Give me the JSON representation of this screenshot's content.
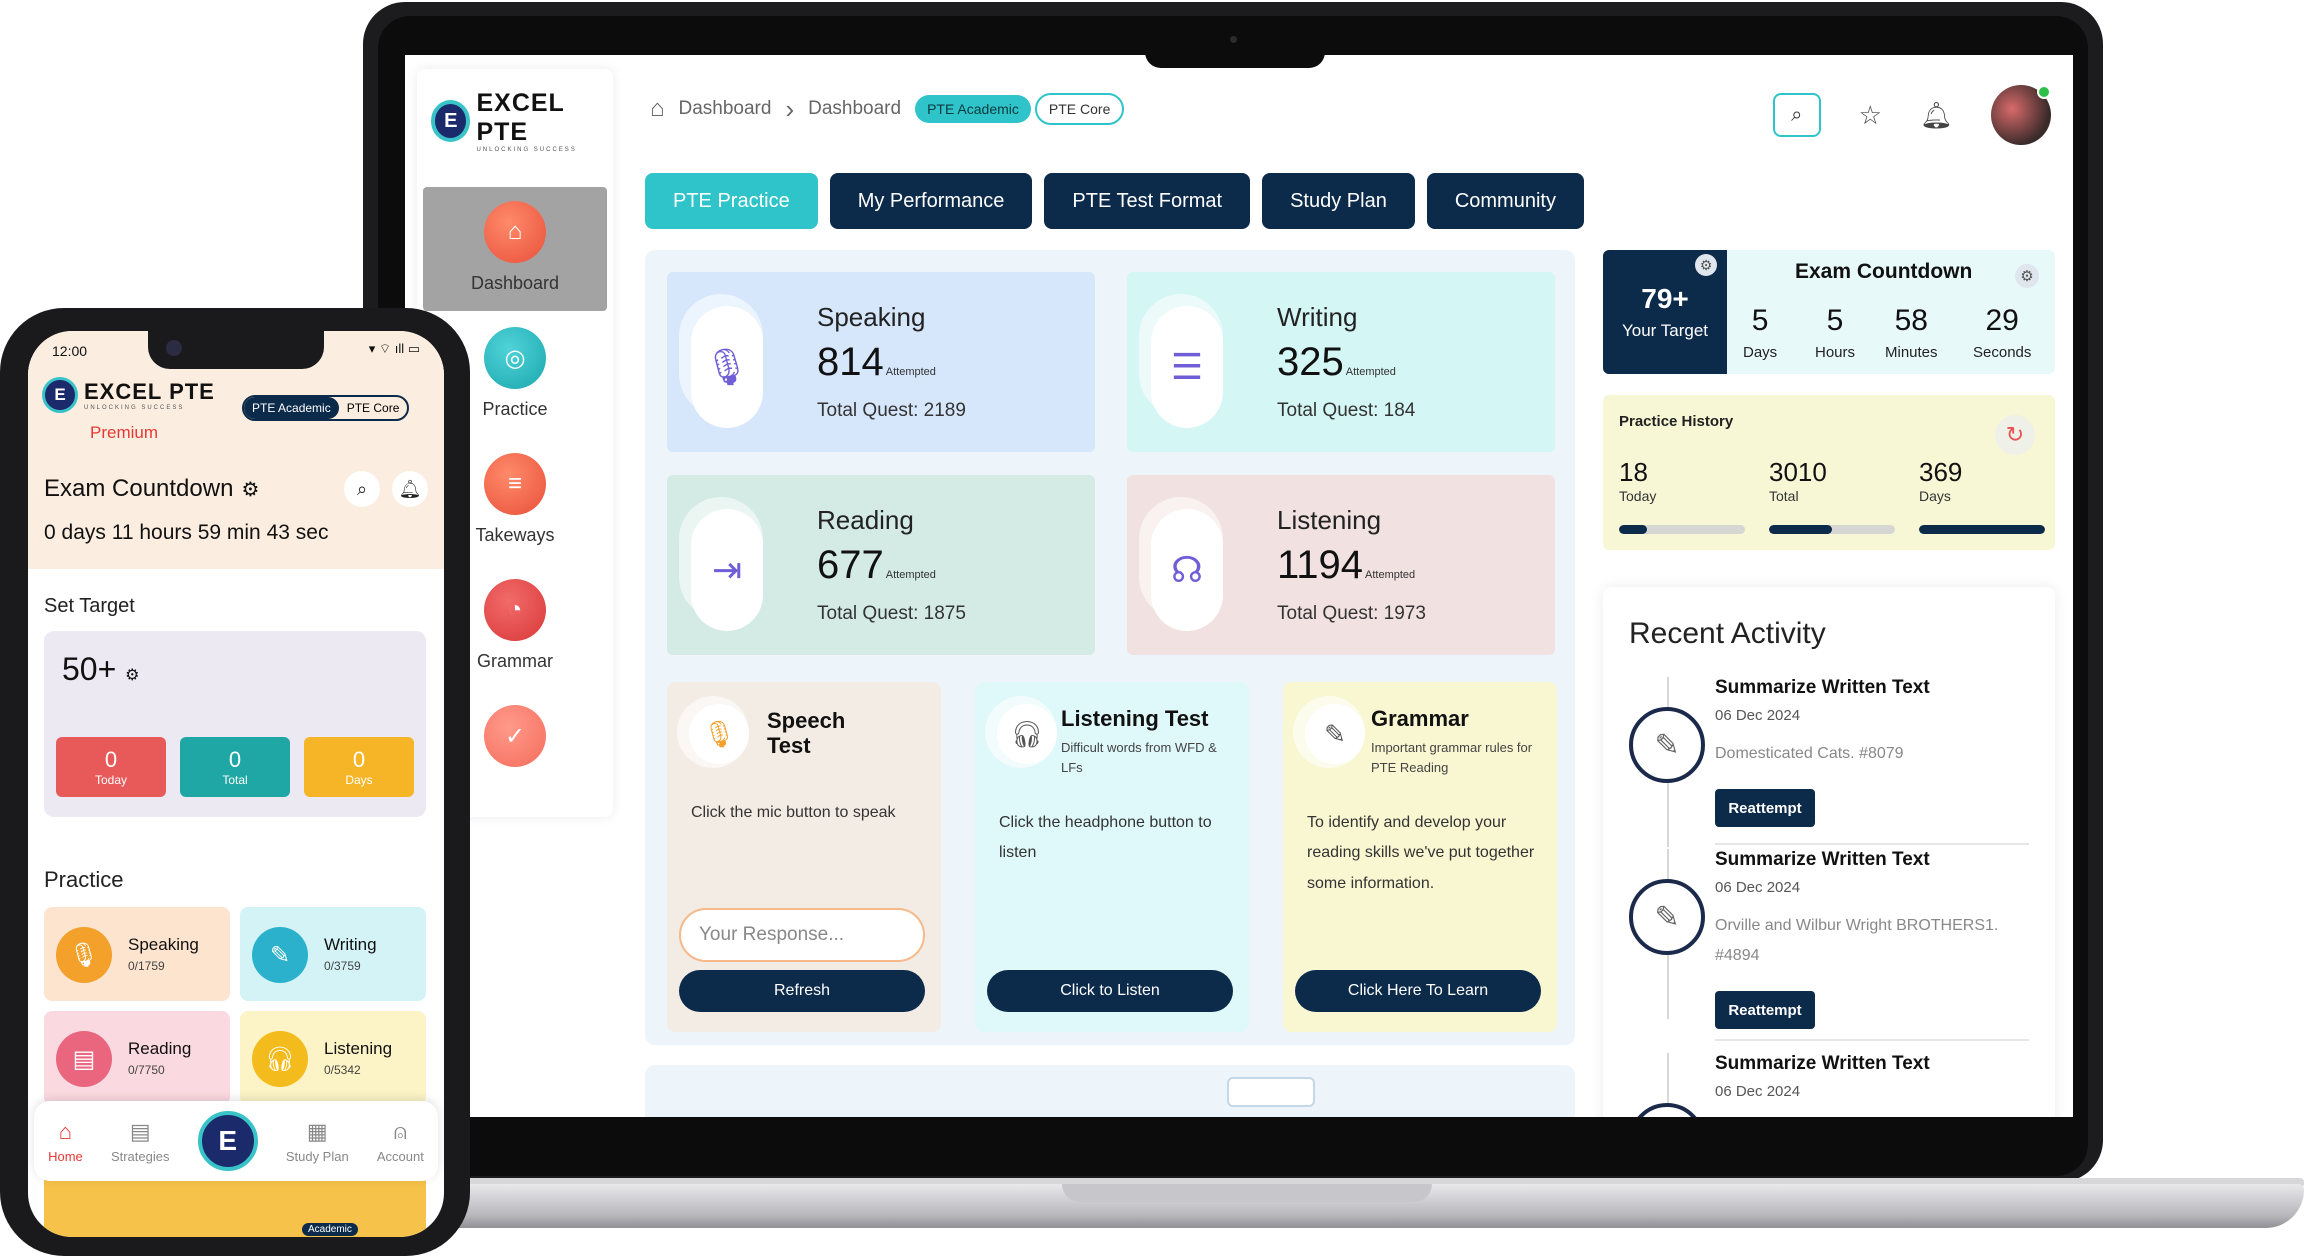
{
  "laptop": {
    "logo": {
      "mark": "E",
      "name": "EXCEL PTE",
      "tagline": "UNLOCKING SUCCESS"
    },
    "sidebar": {
      "items": [
        {
          "label": "Dashboard",
          "icon": "home-icon",
          "active": true
        },
        {
          "label": "Practice",
          "icon": "target-icon",
          "active": false
        },
        {
          "label": "Takeways",
          "icon": "menu-icon",
          "active": false
        },
        {
          "label": "Grammar",
          "icon": "timer-icon",
          "active": false
        },
        {
          "label": "",
          "icon": "check-badge-icon",
          "active": false
        }
      ]
    },
    "breadcrumb": {
      "items": [
        "Dashboard",
        "Dashboard"
      ],
      "separator": "›"
    },
    "exam_toggle": {
      "options": [
        "PTE Academic",
        "PTE Core"
      ],
      "selected": "PTE Academic"
    },
    "header_icons": [
      "search-icon",
      "star-icon",
      "bell-icon",
      "avatar"
    ],
    "tabs": [
      {
        "label": "PTE Practice",
        "active": true
      },
      {
        "label": "My Performance",
        "active": false
      },
      {
        "label": "PTE Test Format",
        "active": false
      },
      {
        "label": "Study Plan",
        "active": false
      },
      {
        "label": "Community",
        "active": false
      }
    ],
    "stats": [
      {
        "name": "Speaking",
        "count": "814",
        "suffix": "Attempted",
        "total": "Total Quest: 2189",
        "color": "#d6e6fb",
        "icon": "mic-icon"
      },
      {
        "name": "Writing",
        "count": "325",
        "suffix": "Attempted",
        "total": "Total Quest: 184",
        "color": "#d4f6f4",
        "icon": "lines-icon"
      },
      {
        "name": "Reading",
        "count": "677",
        "suffix": "Attempted",
        "total": "Total Quest: 1875",
        "color": "#d3ebe4",
        "icon": "indent-icon"
      },
      {
        "name": "Listening",
        "count": "1194",
        "suffix": "Attempted",
        "total": "Total Quest: 1973",
        "color": "#f1e2e1",
        "icon": "ear-icon"
      }
    ],
    "tests": [
      {
        "title": "Speech Test",
        "subtitle": "",
        "description": "Click the mic button to speak",
        "input_placeholder": "Your Response...",
        "button": "Refresh",
        "color": "#f3ece4",
        "icon": "mic-icon"
      },
      {
        "title": "Listening Test",
        "subtitle": "Difficult words from WFD & LFs",
        "description": "Click the headphone button to listen",
        "button": "Click to Listen",
        "color": "#dff8fa",
        "icon": "headphones-icon"
      },
      {
        "title": "Grammar",
        "subtitle": "Important grammar rules for PTE Reading",
        "description": "To identify and develop your reading skills we've put together some information.",
        "button": "Click Here To Learn",
        "color": "#f8f7d2",
        "icon": "notepad-icon"
      }
    ],
    "countdown": {
      "target_value": "79+",
      "target_label": "Your Target",
      "title": "Exam Countdown",
      "units": [
        {
          "value": "5",
          "label": "Days"
        },
        {
          "value": "5",
          "label": "Hours"
        },
        {
          "value": "58",
          "label": "Minutes"
        },
        {
          "value": "29",
          "label": "Seconds"
        }
      ]
    },
    "practice_history": {
      "title": "Practice History",
      "stats": [
        {
          "value": "18",
          "label": "Today",
          "fill": 0.22
        },
        {
          "value": "3010",
          "label": "Total",
          "fill": 0.5
        },
        {
          "value": "369",
          "label": "Days",
          "fill": 1.0
        }
      ]
    },
    "recent_activity": {
      "title": "Recent Activity",
      "items": [
        {
          "name": "Summarize Written Text",
          "date": "06 Dec 2024",
          "desc": "Domesticated Cats. #8079",
          "button": "Reattempt"
        },
        {
          "name": "Summarize Written Text",
          "date": "06 Dec 2024",
          "desc": "Orville and Wilbur Wright BROTHERS1. #4894",
          "button": "Reattempt"
        },
        {
          "name": "Summarize Written Text",
          "date": "06 Dec 2024",
          "desc": "",
          "button": ""
        }
      ]
    }
  },
  "phone": {
    "status_time": "12:00",
    "status_icons": "▾ ⌔ ıll ▭",
    "logo": {
      "mark": "E",
      "name": "EXCEL PTE",
      "tagline": "UNLOCKING SUCCESS"
    },
    "premium": "Premium",
    "exam_toggle": {
      "options": [
        "PTE Academic",
        "PTE Core"
      ],
      "selected": "PTE Academic"
    },
    "countdown_title": "Exam Countdown",
    "countdown_value": "0 days 11 hours 59 min 43 sec",
    "set_target_label": "Set Target",
    "target_value": "50+",
    "target_chips": [
      {
        "value": "0",
        "label": "Today",
        "color": "#e85a5a"
      },
      {
        "value": "0",
        "label": "Total",
        "color": "#1fa7a6"
      },
      {
        "value": "0",
        "label": "Days",
        "color": "#f6b526"
      }
    ],
    "practice_label": "Practice",
    "practice_cards": [
      {
        "name": "Speaking",
        "count": "0/1759",
        "bg": "#fde4cf",
        "ico": "#f4a12c",
        "icon": "mic-icon"
      },
      {
        "name": "Writing",
        "count": "0/3759",
        "bg": "#d3f3f7",
        "ico": "#2bb1cc",
        "icon": "pencil-icon"
      },
      {
        "name": "Reading",
        "count": "0/7750",
        "bg": "#fbd9e0",
        "ico": "#e9667e",
        "icon": "book-icon"
      },
      {
        "name": "Listening",
        "count": "0/5342",
        "bg": "#fcf3c6",
        "ico": "#f3bb1c",
        "icon": "headphones-icon"
      }
    ],
    "nav": [
      {
        "label": "Home",
        "icon": "home-icon",
        "active": true
      },
      {
        "label": "Strategies",
        "icon": "strategies-icon",
        "active": false
      },
      {
        "label": "",
        "icon": "logo-center-icon",
        "active": false
      },
      {
        "label": "Study Plan",
        "icon": "calendar-icon",
        "active": false
      },
      {
        "label": "Account",
        "icon": "user-icon",
        "active": false
      }
    ],
    "banner_tag": "Academic"
  },
  "colors": {
    "teal": "#2ec4c9",
    "navy": "#0c2a4a",
    "red": "#e53935"
  }
}
